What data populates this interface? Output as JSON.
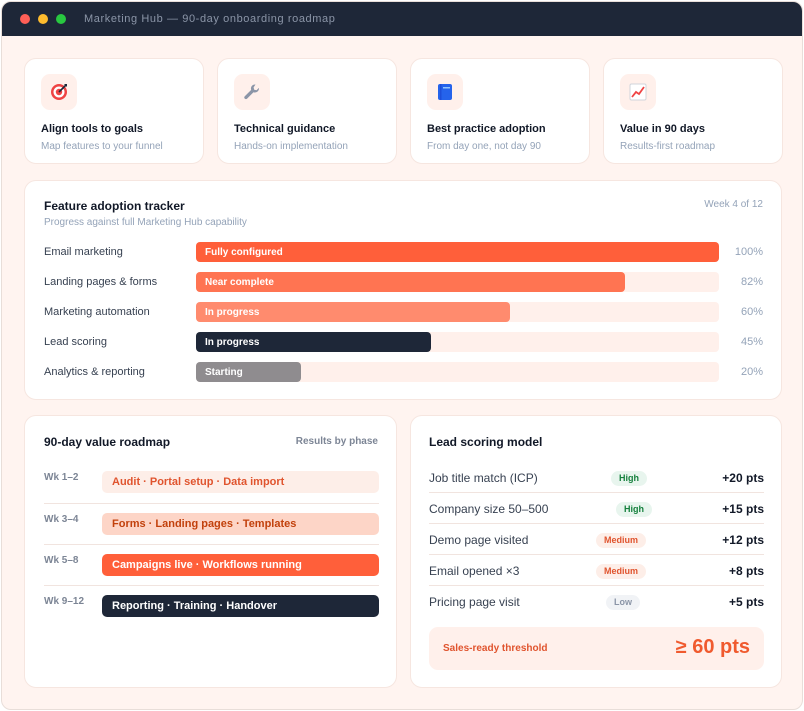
{
  "window": {
    "title": "Marketing Hub — 90-day onboarding roadmap"
  },
  "features": [
    {
      "icon": "target-icon",
      "title": "Align tools to goals",
      "subtitle": "Map features to your funnel"
    },
    {
      "icon": "wrench-icon",
      "title": "Technical guidance",
      "subtitle": "Hands-on implementation"
    },
    {
      "icon": "book-icon",
      "title": "Best practice adoption",
      "subtitle": "From day one, not day 90"
    },
    {
      "icon": "chart-up-icon",
      "title": "Value in 90 days",
      "subtitle": "Results-first roadmap"
    }
  ],
  "tracker": {
    "title": "Feature adoption tracker",
    "subtitle": "Progress against full Marketing Hub capability",
    "week": "Week 4 of 12",
    "rows": [
      {
        "label": "Email marketing",
        "status": "Fully configured",
        "percent": 100,
        "percent_label": "100%",
        "color": "#ff5f3a"
      },
      {
        "label": "Landing pages & forms",
        "status": "Near complete",
        "percent": 82,
        "percent_label": "82%",
        "color": "#ff7452"
      },
      {
        "label": "Marketing automation",
        "status": "In progress",
        "percent": 60,
        "percent_label": "60%",
        "color": "#ff8b6e"
      },
      {
        "label": "Lead scoring",
        "status": "In progress",
        "percent": 45,
        "percent_label": "45%",
        "color": "#1e2738"
      },
      {
        "label": "Analytics & reporting",
        "status": "Starting",
        "percent": 20,
        "percent_label": "20%",
        "color": "#8f8c8f"
      }
    ]
  },
  "roadmap": {
    "title": "90-day value roadmap",
    "link": "Results by phase",
    "phases": [
      {
        "weeks": "Wk 1–2",
        "text": "Audit · Portal setup · Data import",
        "bg": "#fdeee8",
        "fg": "#e0542e"
      },
      {
        "weeks": "Wk 3–4",
        "text": "Forms · Landing pages · Templates",
        "bg": "#fdd5c7",
        "fg": "#c2410c"
      },
      {
        "weeks": "Wk 5–8",
        "text": "Campaigns live · Workflows running",
        "bg": "#ff5f3a",
        "fg": "#ffffff"
      },
      {
        "weeks": "Wk 9–12",
        "text": "Reporting · Training · Handover",
        "bg": "#1e2738",
        "fg": "#ffffff"
      }
    ]
  },
  "scoring": {
    "title": "Lead scoring model",
    "rows": [
      {
        "label": "Job title match (ICP)",
        "priority": "High",
        "level": "high",
        "points": "+20 pts"
      },
      {
        "label": "Company size 50–500",
        "priority": "High",
        "level": "high",
        "points": "+15 pts"
      },
      {
        "label": "Demo page visited",
        "priority": "Medium",
        "level": "med",
        "points": "+12 pts"
      },
      {
        "label": "Email opened ×3",
        "priority": "Medium",
        "level": "med",
        "points": "+8 pts"
      },
      {
        "label": "Pricing page visit",
        "priority": "Low",
        "level": "low",
        "points": "+5 pts"
      }
    ],
    "threshold_label": "Sales-ready threshold",
    "threshold_value": "≥ 60 pts"
  }
}
